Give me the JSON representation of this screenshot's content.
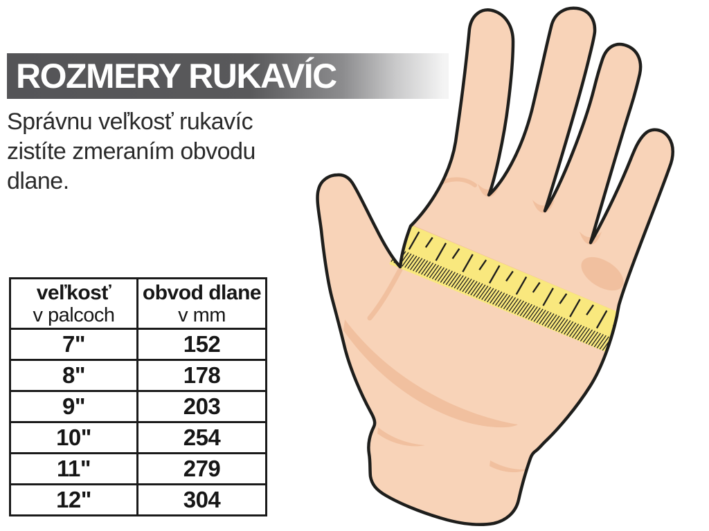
{
  "header": {
    "title": "ROZMERY RUKAVÍC"
  },
  "intro": {
    "lines": [
      "Správnu veľkosť rukavíc",
      "zistíte zmeraním obvodu",
      "dlane."
    ]
  },
  "size_table": {
    "columns": [
      {
        "title": "veľkosť",
        "subtitle": "v palcoch"
      },
      {
        "title": "obvod dlane",
        "subtitle": "v mm"
      }
    ],
    "rows": [
      {
        "inches": "7\"",
        "mm": "152"
      },
      {
        "inches": "8\"",
        "mm": "178"
      },
      {
        "inches": "9\"",
        "mm": "203"
      },
      {
        "inches": "10\"",
        "mm": "254"
      },
      {
        "inches": "11\"",
        "mm": "279"
      },
      {
        "inches": "12\"",
        "mm": "304"
      }
    ]
  },
  "illustration": {
    "description": "Open left hand, palm facing viewer, with a yellow measuring tape wrapped across the palm below the fingers"
  },
  "colors": {
    "title_bar": "#59595b",
    "title_text": "#ffffff",
    "text": "#2a2a2a",
    "table_border": "#1a1a1a",
    "skin": "#f8d3b8",
    "skin_shade": "#f1c09f",
    "tape_yellow": "#f9e87e",
    "outline": "#1e1e1c",
    "background": "#ffffff"
  }
}
